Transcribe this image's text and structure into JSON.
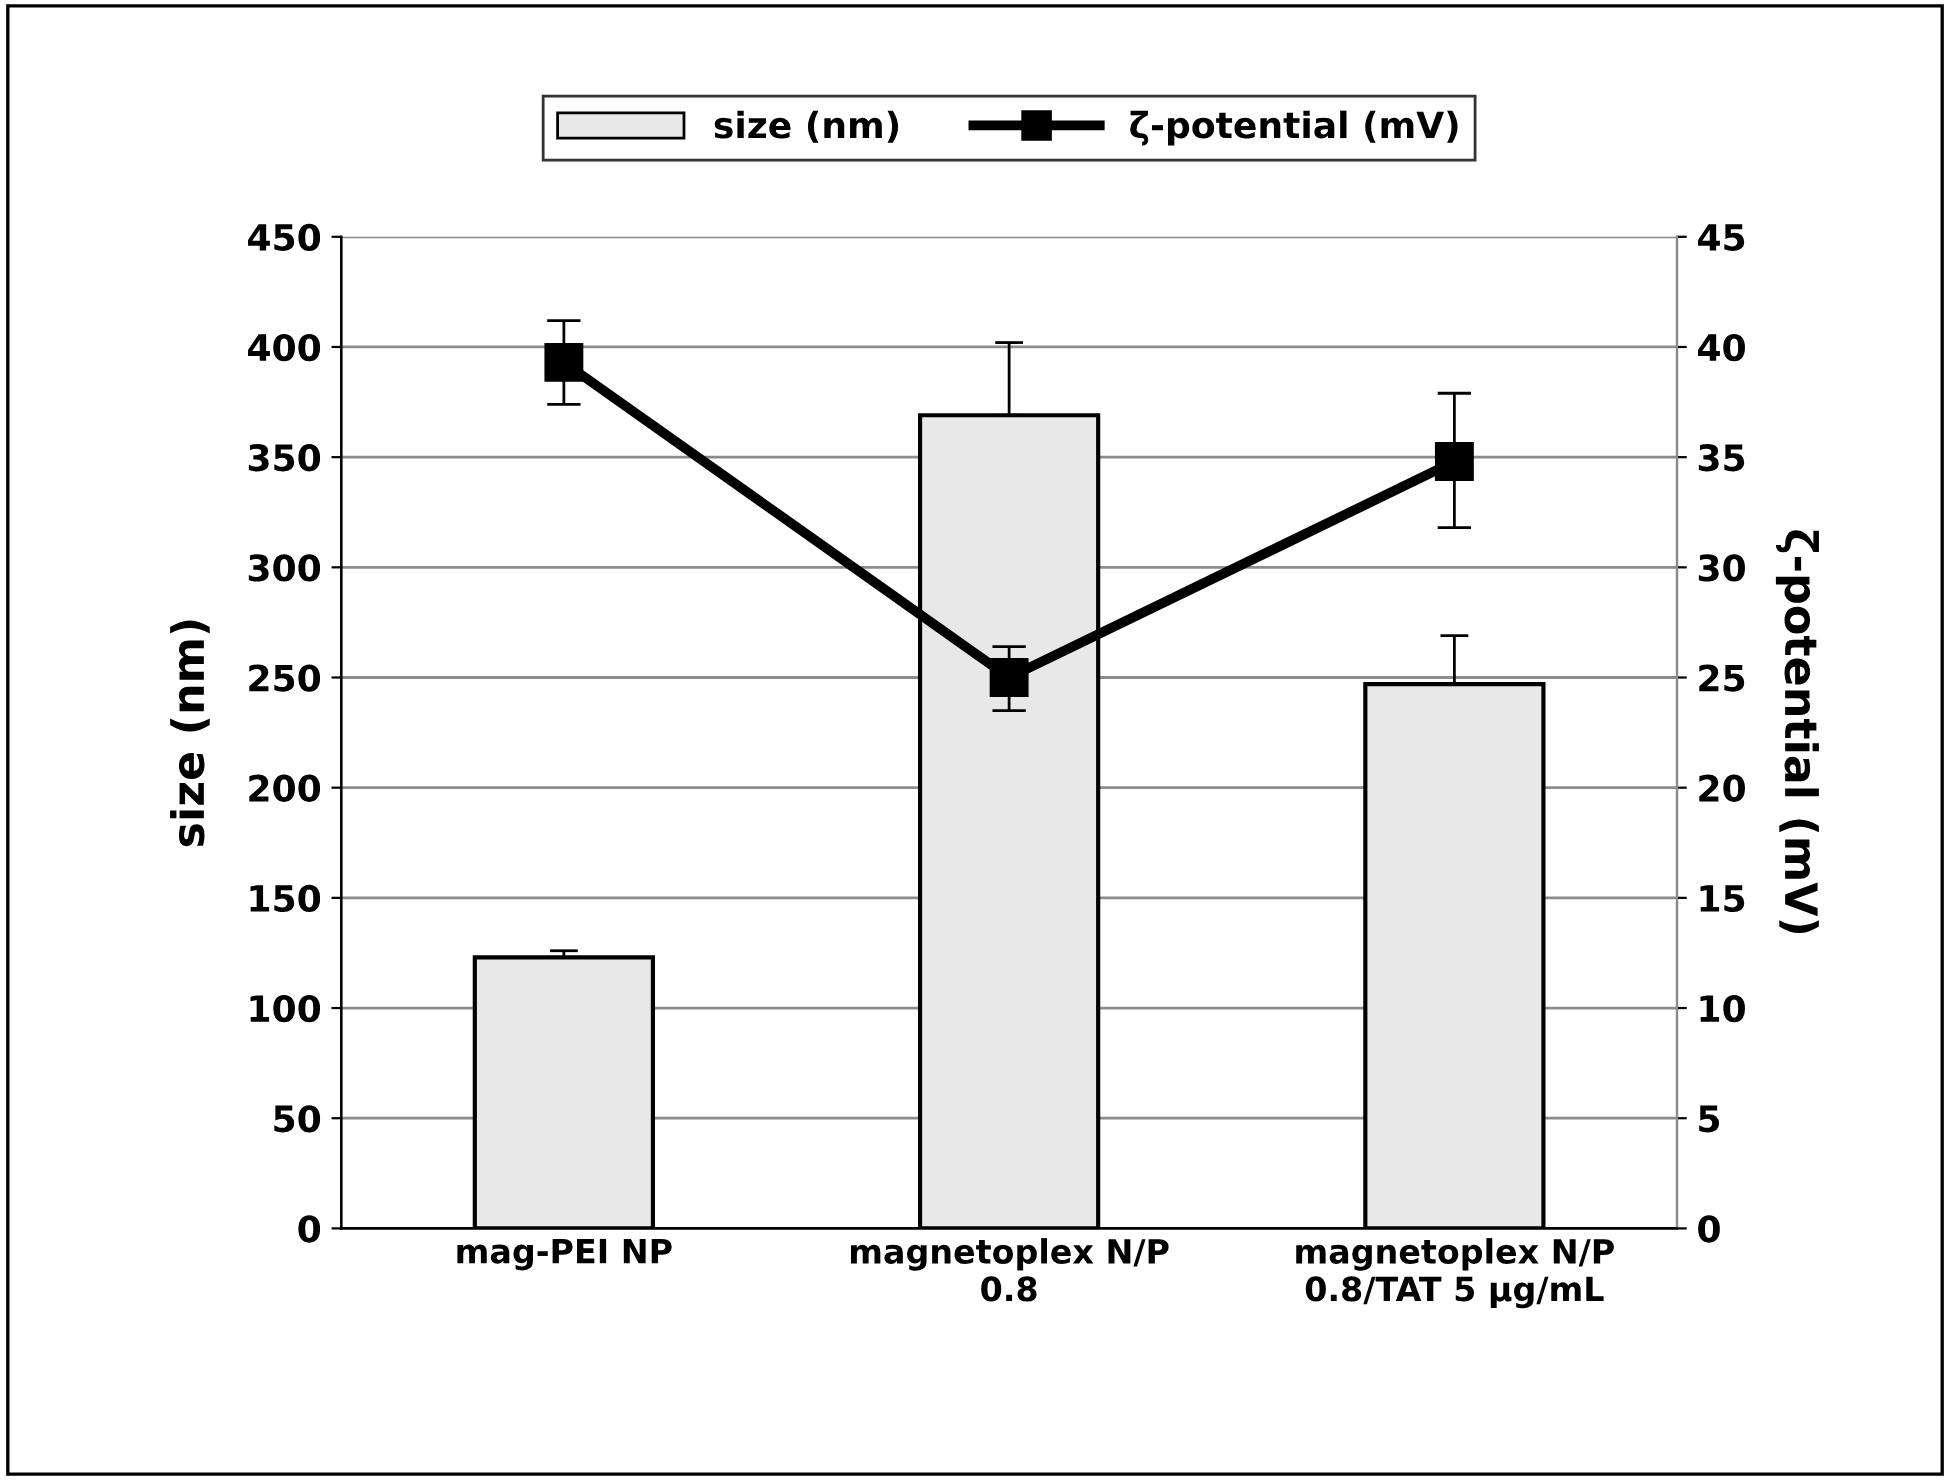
{
  "chart_data": {
    "type": "bar",
    "categories": [
      "mag-PEI NP",
      "magnetoplex N/P\n0.8",
      "magnetoplex N/P\n0.8/TAT 5 µg/mL"
    ],
    "series": [
      {
        "name": "size (nm)",
        "color": "#e8e8e8",
        "values": [
          123,
          369,
          247
        ],
        "errors": [
          [
            123,
            126
          ],
          [
            369,
            402
          ],
          [
            247,
            269
          ]
        ]
      },
      {
        "name": "ζ-potential (mV)",
        "type": "line",
        "axis": "y2",
        "color": "#000000",
        "marker": "square",
        "values": [
          39.3,
          25.0,
          34.8
        ],
        "errors": [
          [
            37.4,
            41.2
          ],
          [
            23.5,
            26.4
          ],
          [
            31.8,
            37.9
          ]
        ]
      }
    ],
    "ylabel": "size (nm)",
    "y2label": "ζ-potential (mV)",
    "ylim": [
      0,
      450
    ],
    "yticks": [
      0,
      50,
      100,
      150,
      200,
      250,
      300,
      350,
      400,
      450
    ],
    "y2lim": [
      0,
      45
    ],
    "y2ticks": [
      0,
      5,
      10,
      15,
      20,
      25,
      30,
      35,
      40,
      45
    ],
    "grid": "y",
    "legend": "top"
  }
}
